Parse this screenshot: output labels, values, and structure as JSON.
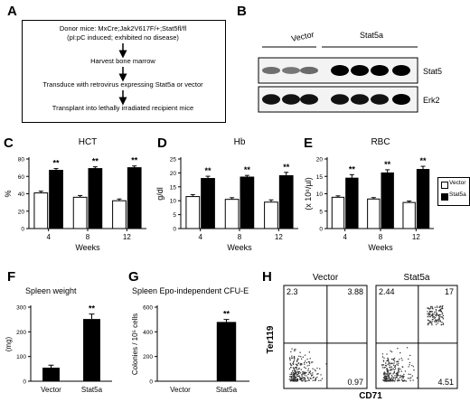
{
  "panels": {
    "A": "A",
    "B": "B",
    "C": "C",
    "D": "D",
    "E": "E",
    "F": "F",
    "G": "G",
    "H": "H"
  },
  "flow": {
    "line1": "Donor mice: MxCre;Jak2V617F/+;Stat5fl/fl",
    "line2": "(pI:pC induced; exhibited no disease)",
    "step2": "Harvest bone marrow",
    "step3": "Transduce with retrovirus expressing Stat5a or vector",
    "step4": "Transplant into lethally irradiated recipient mice"
  },
  "blot": {
    "group_vector": "Vector",
    "group_stat5a": "Stat5a",
    "band_stat5": "Stat5",
    "band_erk2": "Erk2",
    "stat5_intensity": [
      0.35,
      0.3,
      0.38,
      1.0,
      1.0,
      1.0,
      1.0
    ],
    "erk2_intensity": [
      0.9,
      0.9,
      0.9,
      0.9,
      0.9,
      0.9,
      1.0
    ]
  },
  "legend": {
    "vector": "Vector",
    "stat5a": "Stat5a",
    "vector_color": "#ffffff",
    "stat5a_color": "#000000"
  },
  "colors": {
    "vector": "#ffffff",
    "stat5a": "#000000"
  },
  "significance": "**",
  "chart_data": [
    {
      "id": "C",
      "type": "bar",
      "title": "HCT",
      "ylabel": "%",
      "xlabel": "Weeks",
      "categories": [
        "4",
        "8",
        "12"
      ],
      "ylim": [
        0,
        80
      ],
      "yticks": [
        0,
        20,
        40,
        60,
        80
      ],
      "series": [
        {
          "name": "Vector",
          "values": [
            41,
            36,
            32
          ],
          "errors": [
            2,
            2,
            2
          ]
        },
        {
          "name": "Stat5a",
          "values": [
            67,
            69,
            70
          ],
          "errors": [
            2,
            2,
            2
          ]
        }
      ],
      "annotations": [
        "**",
        "**",
        "**"
      ]
    },
    {
      "id": "D",
      "type": "bar",
      "title": "Hb",
      "ylabel": "g/dl",
      "xlabel": "Weeks",
      "categories": [
        "4",
        "8",
        "12"
      ],
      "ylim": [
        0,
        25
      ],
      "yticks": [
        0,
        5,
        10,
        15,
        20,
        25
      ],
      "series": [
        {
          "name": "Vector",
          "values": [
            11.5,
            10.5,
            9.5
          ],
          "errors": [
            0.7,
            0.6,
            0.8
          ]
        },
        {
          "name": "Stat5a",
          "values": [
            18,
            18.5,
            19
          ],
          "errors": [
            0.8,
            0.6,
            1.2
          ]
        }
      ],
      "annotations": [
        "**",
        "**",
        "**"
      ]
    },
    {
      "id": "E",
      "type": "bar",
      "title": "RBC",
      "ylabel": "(x 10⁶/µl)",
      "xlabel": "Weeks",
      "categories": [
        "4",
        "8",
        "12"
      ],
      "ylim": [
        0,
        20
      ],
      "yticks": [
        0,
        5,
        10,
        15,
        20
      ],
      "series": [
        {
          "name": "Vector",
          "values": [
            9,
            8.5,
            7.5
          ],
          "errors": [
            0.4,
            0.4,
            0.4
          ]
        },
        {
          "name": "Stat5a",
          "values": [
            14.5,
            16,
            17
          ],
          "errors": [
            1.0,
            0.9,
            0.9
          ]
        }
      ],
      "annotations": [
        "**",
        "**",
        "**"
      ]
    },
    {
      "id": "F",
      "type": "bar",
      "title": "Spleen weight",
      "ylabel": "(mg)",
      "categories": [
        "Vector",
        "Stat5a"
      ],
      "ylim": [
        0,
        300
      ],
      "yticks": [
        0,
        100,
        200,
        300
      ],
      "values": [
        55,
        252
      ],
      "errors": [
        10,
        20
      ],
      "fills": [
        "#000000",
        "#000000"
      ],
      "annotations": [
        "",
        "**"
      ]
    },
    {
      "id": "G",
      "type": "bar",
      "title": "Spleen Epo-independent CFU-E",
      "ylabel": "Colonies / 10⁵ cells",
      "categories": [
        "Vector",
        "Stat5a"
      ],
      "ylim": [
        0,
        600
      ],
      "yticks": [
        0,
        200,
        400,
        600
      ],
      "values": [
        0,
        480
      ],
      "errors": [
        0,
        20
      ],
      "fills": [
        "#000000",
        "#000000"
      ],
      "annotations": [
        "",
        "**"
      ]
    },
    {
      "id": "H",
      "type": "scatter",
      "xlabel": "CD71",
      "ylabel": "Ter119",
      "plots": [
        {
          "title": "Vector",
          "quadrants": {
            "top_left": "2.3",
            "top_right": "3.88",
            "bottom_right": "0.97"
          }
        },
        {
          "title": "Stat5a",
          "quadrants": {
            "top_left": "2.44",
            "top_right": "17",
            "bottom_right": "4.51"
          }
        }
      ]
    }
  ]
}
